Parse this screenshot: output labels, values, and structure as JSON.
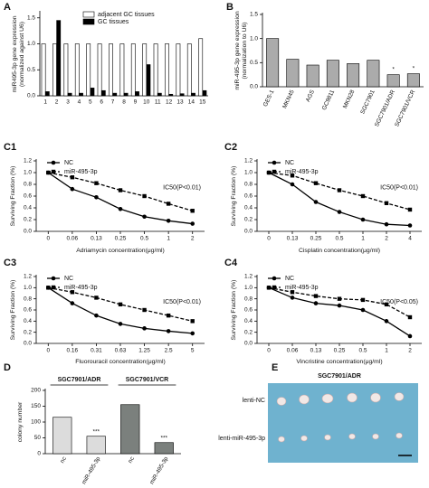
{
  "chart_data": [
    {
      "type": "bar",
      "panel": "A",
      "ylabel": [
        "miR495-3p gene expression",
        "(normalized against U6)"
      ],
      "categories": [
        "1",
        "2",
        "3",
        "4",
        "5",
        "6",
        "7",
        "8",
        "9",
        "10",
        "11",
        "12",
        "13",
        "14",
        "15"
      ],
      "series": [
        {
          "name": "adjacent GC tissues",
          "color": "#ffffff",
          "values": [
            1.0,
            1.0,
            1.0,
            1.0,
            1.0,
            1.0,
            1.0,
            1.0,
            1.0,
            1.0,
            1.0,
            1.0,
            1.0,
            1.0,
            1.1
          ]
        },
        {
          "name": "GC tissues",
          "color": "#000000",
          "values": [
            0.08,
            1.45,
            0.05,
            0.05,
            0.15,
            0.1,
            0.05,
            0.05,
            0.08,
            0.6,
            0.05,
            0.03,
            0.04,
            0.05,
            0.1
          ]
        }
      ],
      "ylim": [
        0,
        1.6
      ],
      "yticks": [
        {
          "value": 0,
          "label": "0.0"
        },
        0.5,
        {
          "value": 1,
          "label": "1.0"
        },
        1.5
      ],
      "legend": "top"
    },
    {
      "type": "bar",
      "panel": "B",
      "ylabel": [
        "miR-495-3p gene expression",
        "(normalization to U6)"
      ],
      "categories": [
        "GES-1",
        "MKN45",
        "AGS",
        "GC9811",
        "MKN28",
        "SGC7901",
        "SGC7901/ADR",
        "SGC7901/VCR"
      ],
      "values": [
        1.0,
        0.57,
        0.45,
        0.55,
        0.48,
        0.55,
        0.25,
        0.27
      ],
      "color": "#ababab",
      "significance": [
        null,
        null,
        null,
        null,
        null,
        null,
        "*",
        "*"
      ],
      "ylim": [
        0,
        1.5
      ],
      "yticks": [
        {
          "value": 0,
          "label": "0.0"
        },
        0.5,
        {
          "value": 1,
          "label": "1.0"
        },
        1.5
      ]
    },
    {
      "type": "line",
      "panel": "C1",
      "ylabel": [
        "Surviving Fraction (%)"
      ],
      "xlabel": "Adriamycin concentration(μg/ml)",
      "categories": [
        "0",
        "0.06",
        "0.13",
        "0.25",
        "0.5",
        "1",
        "2"
      ],
      "series": [
        {
          "name": "NC",
          "color": "#000000",
          "marker": "circle",
          "dashed": false,
          "values": [
            1.0,
            0.72,
            0.58,
            0.38,
            0.25,
            0.18,
            0.13
          ]
        },
        {
          "name": "miR-495-3p",
          "color": "#000000",
          "marker": "square",
          "dashed": true,
          "values": [
            1.0,
            0.92,
            0.82,
            0.7,
            0.6,
            0.47,
            0.35
          ]
        }
      ],
      "annotation": "IC50(P<0.01)",
      "ylim": [
        0,
        1.2
      ],
      "yticks": [
        {
          "value": 0,
          "label": "0.0"
        },
        0.2,
        0.4,
        0.6,
        0.8,
        {
          "value": 1,
          "label": "1.0"
        },
        1.2
      ]
    },
    {
      "type": "line",
      "panel": "C2",
      "ylabel": [
        "Surviving Fraction (%)"
      ],
      "xlabel": "Cisplatin concentration(μg/ml)",
      "categories": [
        "0",
        "0.13",
        "0.25",
        "0.5",
        "1",
        "2",
        "4"
      ],
      "series": [
        {
          "name": "NC",
          "color": "#000000",
          "marker": "circle",
          "dashed": false,
          "values": [
            1.0,
            0.8,
            0.5,
            0.33,
            0.2,
            0.12,
            0.1
          ]
        },
        {
          "name": "miR-495-3p",
          "color": "#000000",
          "marker": "square",
          "dashed": true,
          "values": [
            1.0,
            0.95,
            0.82,
            0.7,
            0.6,
            0.48,
            0.37
          ]
        }
      ],
      "annotation": "IC50(P<0.01)",
      "ylim": [
        0,
        1.2
      ],
      "yticks": [
        {
          "value": 0,
          "label": "0.0"
        },
        0.2,
        0.4,
        0.6,
        0.8,
        {
          "value": 1,
          "label": "1.0"
        },
        1.2
      ]
    },
    {
      "type": "line",
      "panel": "C3",
      "ylabel": [
        "Surviving Fraction (%)"
      ],
      "xlabel": "Fluorouracil concentration(μg/ml)",
      "categories": [
        "0",
        "0.16",
        "0.31",
        "0.63",
        "1.25",
        "2.5",
        "5"
      ],
      "series": [
        {
          "name": "NC",
          "color": "#000000",
          "marker": "circle",
          "dashed": false,
          "values": [
            1.0,
            0.72,
            0.5,
            0.35,
            0.27,
            0.22,
            0.18
          ]
        },
        {
          "name": "miR-495-3p",
          "color": "#000000",
          "marker": "square",
          "dashed": true,
          "values": [
            1.0,
            0.92,
            0.82,
            0.7,
            0.6,
            0.5,
            0.4
          ]
        }
      ],
      "annotation": "IC50(P<0.01)",
      "ylim": [
        0,
        1.2
      ],
      "yticks": [
        {
          "value": 0,
          "label": "0.0"
        },
        0.2,
        0.4,
        0.6,
        0.8,
        {
          "value": 1,
          "label": "1.0"
        },
        1.2
      ]
    },
    {
      "type": "line",
      "panel": "C4",
      "ylabel": [
        "Surviving Fraction (%)"
      ],
      "xlabel": "Vincristine concentration(μg/ml)",
      "categories": [
        "0",
        "0.06",
        "0.13",
        "0.25",
        "0.5",
        "1",
        "2"
      ],
      "series": [
        {
          "name": "NC",
          "color": "#000000",
          "marker": "circle",
          "dashed": false,
          "values": [
            1.0,
            0.82,
            0.72,
            0.68,
            0.6,
            0.4,
            0.13
          ]
        },
        {
          "name": "miR-495-3p",
          "color": "#000000",
          "marker": "square",
          "dashed": true,
          "values": [
            1.0,
            0.92,
            0.85,
            0.8,
            0.78,
            0.7,
            0.47
          ]
        }
      ],
      "annotation": "IC50(P<0.05)",
      "ylim": [
        0,
        1.2
      ],
      "yticks": [
        {
          "value": 0,
          "label": "0.0"
        },
        0.2,
        0.4,
        0.6,
        0.8,
        {
          "value": 1,
          "label": "1.0"
        },
        1.2
      ]
    },
    {
      "type": "groupbar",
      "panel": "D",
      "ylabel": [
        "colony number"
      ],
      "groups": [
        "SGC7901/ADR",
        "SGC7901/VCR"
      ],
      "categories": [
        "nc",
        "miR-495-3p",
        "nc",
        "miR-495-3p"
      ],
      "values": [
        115,
        55,
        155,
        35
      ],
      "colors": [
        "#dcdcdc",
        "#dcdcdc",
        "#7b807d",
        "#7b807d"
      ],
      "significance": [
        null,
        "***",
        null,
        "***"
      ],
      "ylim": [
        0,
        200
      ],
      "yticks": [
        0,
        50,
        100,
        150,
        200
      ]
    }
  ],
  "image_panel": {
    "panel": "E",
    "title": "SGC7901/ADR",
    "rows": [
      "lenti-NC",
      "lenti-miR-495-3p"
    ]
  }
}
